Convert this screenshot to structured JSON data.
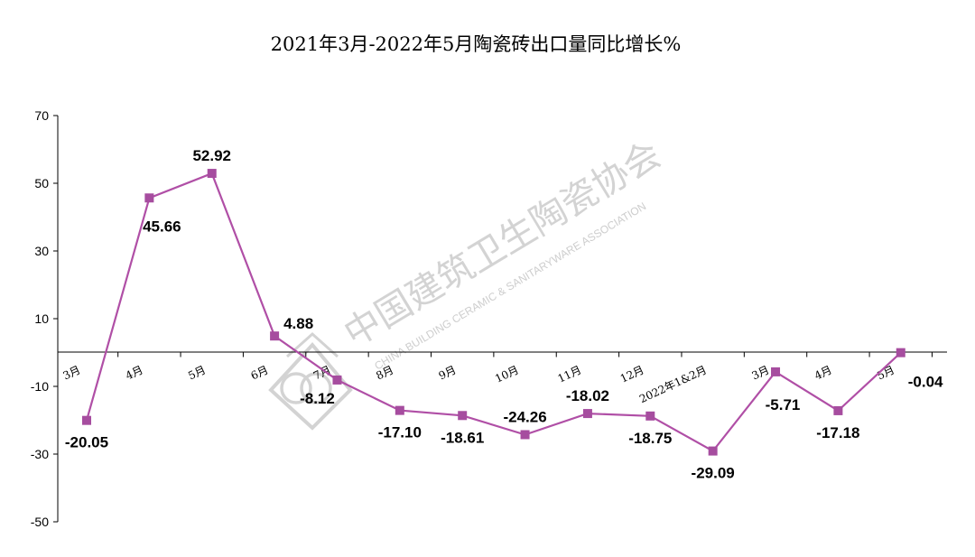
{
  "chart_data": {
    "type": "line",
    "title": "2021年3月-2022年5月陶瓷砖出口量同比增长%",
    "xlabel": "",
    "ylabel": "",
    "categories": [
      "3月",
      "4月",
      "5月",
      "6月",
      "7月",
      "8月",
      "9月",
      "10月",
      "11月",
      "12月",
      "2022年1&2月",
      "3月",
      "4月",
      "5月"
    ],
    "series": [
      {
        "values": [
          -20.05,
          45.66,
          52.92,
          4.88,
          -8.12,
          -17.1,
          -18.61,
          -24.26,
          -18.02,
          -18.75,
          -29.09,
          -5.71,
          -17.18,
          -0.04
        ],
        "labels": [
          "-20.05",
          "45.66",
          "52.92",
          "4.88",
          "-8.12",
          "-17.10",
          "-18.61",
          "-24.26",
          "-18.02",
          "-18.75",
          "-29.09",
          "-5.71",
          "-17.18",
          "-0.04"
        ]
      }
    ],
    "ylim": [
      -50,
      70
    ],
    "yticks": [
      70,
      50,
      30,
      10,
      -10,
      -30,
      -50
    ],
    "grid": false,
    "legend": "none",
    "line_color": "#b04fa6",
    "marker_color": "#a64d9f"
  },
  "watermark": {
    "cn": "中国建筑卫生陶瓷协会",
    "en": "CHINA BUILDING CERAMIC & SANITARYWARE ASSOCIATION"
  }
}
